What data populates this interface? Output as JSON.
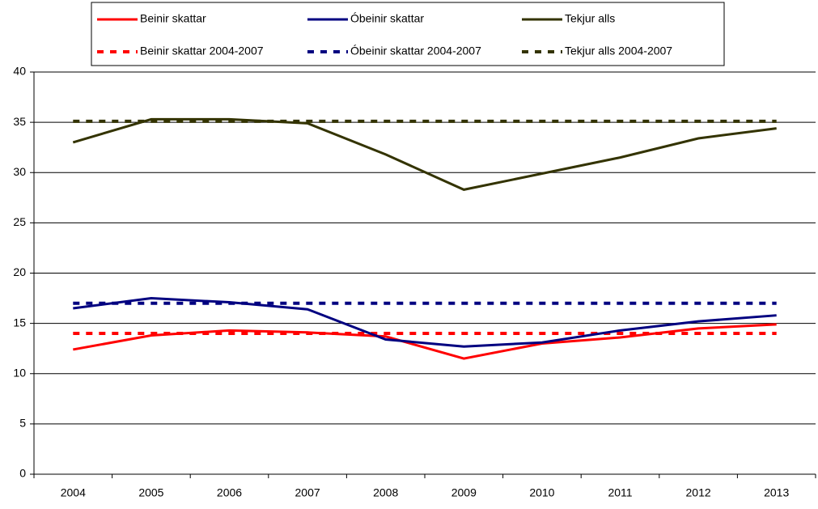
{
  "chart_data": {
    "type": "line",
    "categories": [
      "2004",
      "2005",
      "2006",
      "2007",
      "2008",
      "2009",
      "2010",
      "2011",
      "2012",
      "2013"
    ],
    "series": [
      {
        "name": "Beinir skattar",
        "color": "#ff0000",
        "style": "solid",
        "values": [
          12.4,
          13.8,
          14.3,
          14.1,
          13.7,
          11.5,
          13.0,
          13.6,
          14.5,
          14.9
        ]
      },
      {
        "name": "Óbeinir skattar",
        "color": "#000080",
        "style": "solid",
        "values": [
          16.5,
          17.5,
          17.1,
          16.4,
          13.4,
          12.7,
          13.1,
          14.3,
          15.2,
          15.8
        ]
      },
      {
        "name": "Tekjur alls",
        "color": "#333300",
        "style": "solid",
        "values": [
          33.0,
          35.3,
          35.3,
          34.9,
          31.8,
          28.3,
          29.9,
          31.5,
          33.4,
          34.4
        ]
      },
      {
        "name": "Beinir skattar 2004-2007",
        "color": "#ff0000",
        "style": "dashed",
        "values": [
          14.0,
          14.0,
          14.0,
          14.0,
          14.0,
          14.0,
          14.0,
          14.0,
          14.0,
          14.0
        ]
      },
      {
        "name": "Óbeinir skattar 2004-2007",
        "color": "#000080",
        "style": "dashed",
        "values": [
          17.0,
          17.0,
          17.0,
          17.0,
          17.0,
          17.0,
          17.0,
          17.0,
          17.0,
          17.0
        ]
      },
      {
        "name": "Tekjur alls 2004-2007",
        "color": "#333300",
        "style": "dashed",
        "values": [
          35.1,
          35.1,
          35.1,
          35.1,
          35.1,
          35.1,
          35.1,
          35.1,
          35.1,
          35.1
        ]
      }
    ],
    "ylim": [
      0,
      40
    ],
    "yticks": [
      0,
      5,
      10,
      15,
      20,
      25,
      30,
      35,
      40
    ],
    "grid": true,
    "legend": "top"
  }
}
